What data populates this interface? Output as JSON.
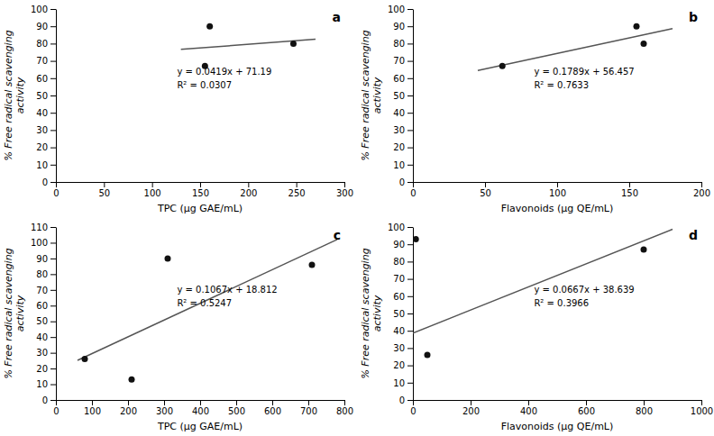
{
  "chart_data": [
    {
      "type": "scatter",
      "title": "a",
      "xlabel": "TPC (μg GAE/mL)",
      "ylabel": "% Free radical scavenging\nactivity",
      "annotations": [
        "y = 0.0419x + 71.19",
        "R² = 0.0307"
      ],
      "xlim": [
        0,
        300
      ],
      "xticks": [
        0,
        50,
        100,
        150,
        200,
        250,
        300
      ],
      "ylim": [
        0,
        100
      ],
      "yticks": [
        0,
        10,
        20,
        30,
        40,
        50,
        60,
        70,
        80,
        90,
        100
      ],
      "grid": false,
      "series": [
        {
          "type": "scatter",
          "color": "#111111",
          "x": [
            155,
            160,
            247
          ],
          "values": [
            67,
            90,
            80
          ]
        },
        {
          "type": "line",
          "color": "#555555",
          "x": [
            130,
            270
          ],
          "values": [
            76.637,
            82.503
          ]
        }
      ]
    },
    {
      "type": "scatter",
      "title": "b",
      "xlabel": "Flavonoids (μg QE/mL)",
      "ylabel": "% Free radical scavenging\nactivity",
      "annotations": [
        "y = 0.1789x + 56.457",
        "R² = 0.7633"
      ],
      "xlim": [
        0,
        200
      ],
      "xticks": [
        0,
        50,
        100,
        150,
        200
      ],
      "ylim": [
        0,
        100
      ],
      "yticks": [
        0,
        10,
        20,
        30,
        40,
        50,
        60,
        70,
        80,
        90,
        100
      ],
      "grid": false,
      "series": [
        {
          "type": "scatter",
          "color": "#111111",
          "x": [
            62,
            155,
            160
          ],
          "values": [
            67,
            90,
            80
          ]
        },
        {
          "type": "line",
          "color": "#555555",
          "x": [
            45,
            180
          ],
          "values": [
            64.5075,
            88.659
          ]
        }
      ]
    },
    {
      "type": "scatter",
      "title": "c",
      "xlabel": "TPC (μg GAE/mL)",
      "ylabel": "% Free radical scavenging\nactivity",
      "annotations": [
        "y = 0.1067x + 18.812",
        "R² = 0.5247"
      ],
      "xlim": [
        0,
        800
      ],
      "xticks": [
        0,
        100,
        200,
        300,
        400,
        500,
        600,
        700,
        800
      ],
      "ylim": [
        0,
        110
      ],
      "yticks": [
        0,
        10,
        20,
        30,
        40,
        50,
        60,
        70,
        80,
        90,
        100,
        110
      ],
      "grid": false,
      "series": [
        {
          "type": "scatter",
          "color": "#111111",
          "x": [
            80,
            210,
            310,
            710
          ],
          "values": [
            26,
            13,
            90,
            86
          ]
        },
        {
          "type": "line",
          "color": "#555555",
          "x": [
            60,
            780
          ],
          "values": [
            25.214,
            102.038
          ]
        }
      ]
    },
    {
      "type": "scatter",
      "title": "d",
      "xlabel": "Flavonoids (μg QE/mL)",
      "ylabel": "% Free radical scavenging\nactivity",
      "annotations": [
        "y = 0.0667x + 38.639",
        "R² = 0.3966"
      ],
      "xlim": [
        0,
        1000
      ],
      "xticks": [
        0,
        200,
        400,
        600,
        800,
        1000
      ],
      "ylim": [
        0,
        100
      ],
      "yticks": [
        0,
        10,
        20,
        30,
        40,
        50,
        60,
        70,
        80,
        90,
        100
      ],
      "grid": false,
      "series": [
        {
          "type": "scatter",
          "color": "#111111",
          "x": [
            10,
            50,
            800
          ],
          "values": [
            93,
            26,
            87
          ]
        },
        {
          "type": "line",
          "color": "#555555",
          "x": [
            0,
            900
          ],
          "values": [
            38.639,
            98.669
          ]
        }
      ]
    }
  ]
}
